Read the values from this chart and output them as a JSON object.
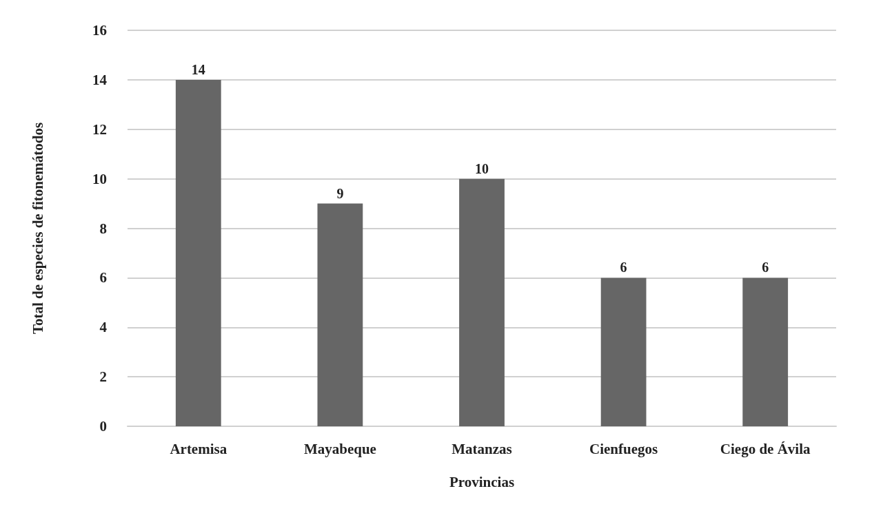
{
  "chart_data": {
    "type": "bar",
    "xlabel": "Provincias",
    "ylabel": "Total de especies de fitonemátodos",
    "categories": [
      "Artemisa",
      "Mayabeque",
      "Matanzas",
      "Cienfuegos",
      "Ciego de Ávila"
    ],
    "values": [
      14,
      9,
      10,
      6,
      6
    ],
    "color": "#666666",
    "ylim": [
      0,
      16
    ],
    "yticks": [
      0,
      2,
      4,
      6,
      8,
      10,
      12,
      14,
      16
    ],
    "grid": "y",
    "data_labels": true
  }
}
